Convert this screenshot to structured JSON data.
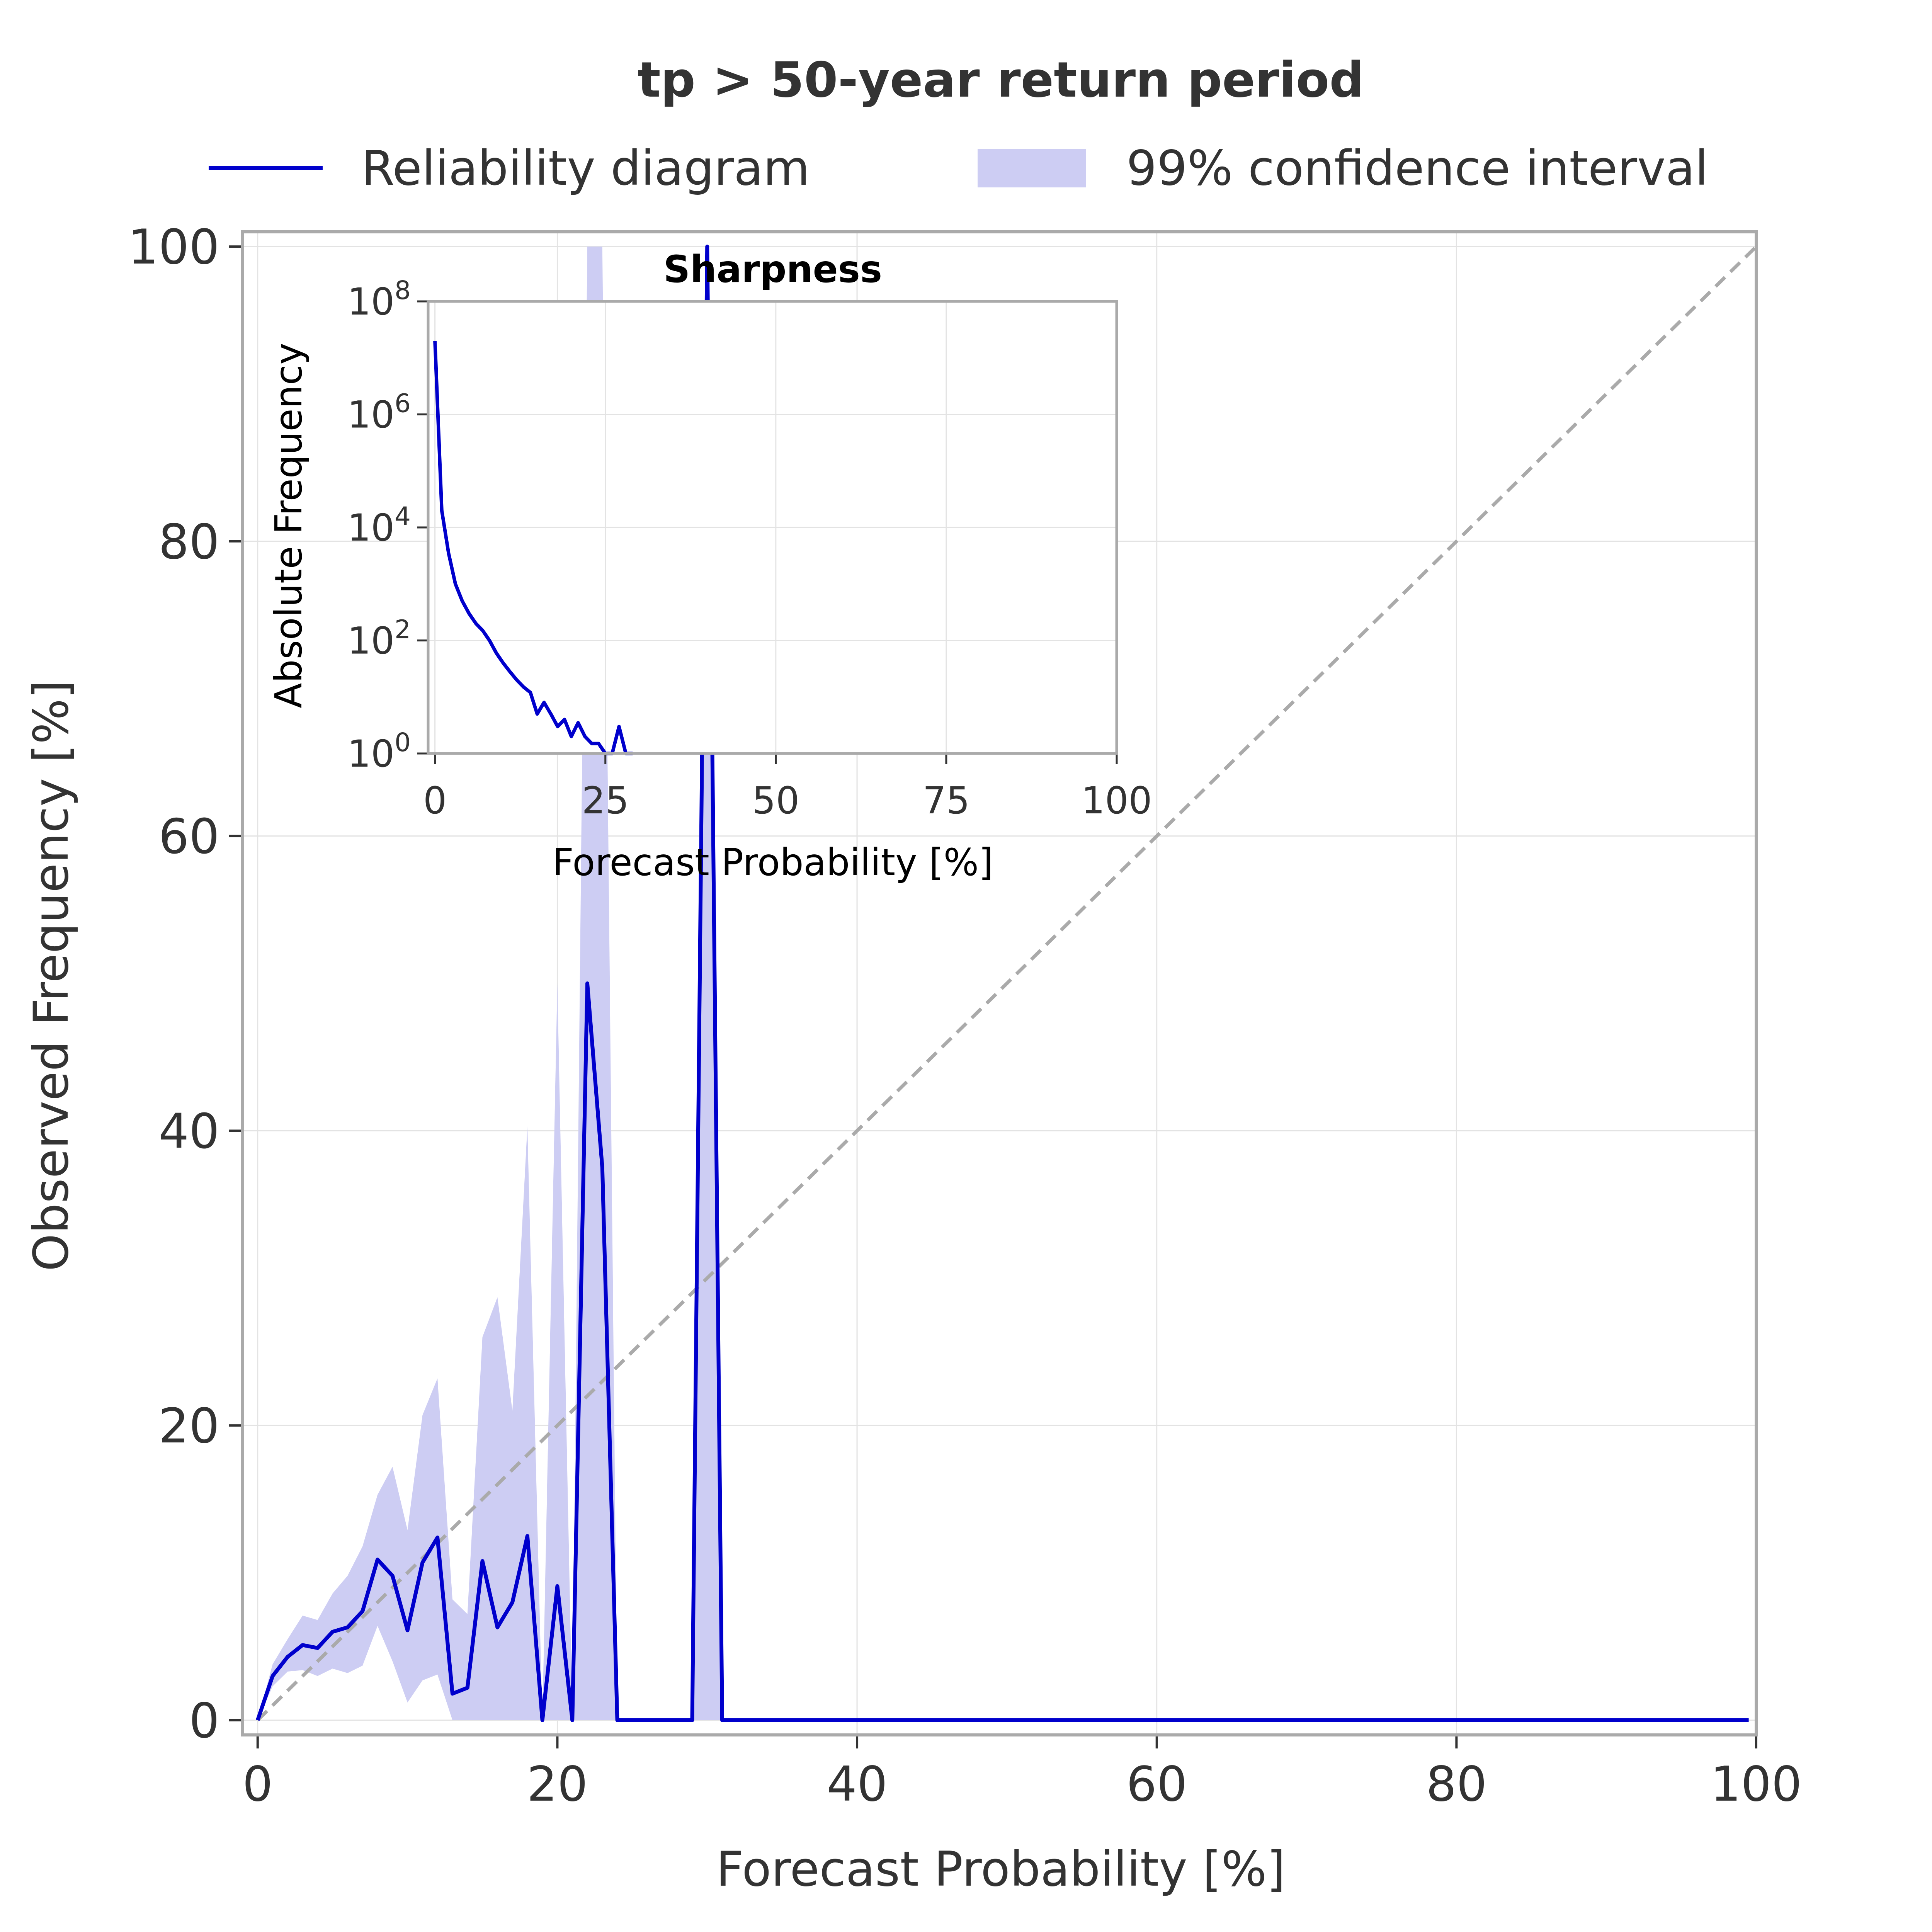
{
  "colors": {
    "line": "#0000cc",
    "ci_fill": "#cdcdf3",
    "diagonal": "#aaaaaa",
    "grid": "#e3e3e3",
    "frame": "#aaaaaa",
    "text": "#333333"
  },
  "legend": {
    "line_label": "Reliability diagram",
    "ci_label": "99% confidence interval",
    "placement": "top"
  },
  "chart_data": [
    {
      "type": "line",
      "title": "tp > 50-year return period",
      "xlabel": "Forecast Probability [%]",
      "ylabel": "Observed Frequency [%]",
      "xlim": [
        -1,
        100
      ],
      "ylim": [
        -1,
        101
      ],
      "xticks": [
        "0",
        "20",
        "40",
        "60",
        "80",
        "100"
      ],
      "yticks": [
        "0",
        "20",
        "40",
        "60",
        "80",
        "100"
      ],
      "grid": true,
      "diagonal_reference": true,
      "series": [
        {
          "name": "Reliability diagram",
          "x": [
            0,
            1,
            2,
            3,
            4,
            5,
            6,
            7,
            8,
            9,
            10,
            11,
            12,
            13,
            14,
            15,
            16,
            17,
            18,
            19,
            20,
            21,
            22,
            23,
            24,
            25,
            26,
            27,
            28,
            29,
            30,
            31,
            32,
            40,
            50,
            60,
            70,
            80,
            90,
            99.5
          ],
          "y": [
            0,
            3,
            4.3,
            5.1,
            4.9,
            6,
            6.3,
            7.4,
            10.9,
            9.8,
            6.1,
            10.7,
            12.4,
            1.8,
            2.2,
            10.8,
            6.3,
            8,
            12.5,
            0,
            9.1,
            0,
            50,
            37.5,
            0,
            0,
            0,
            0,
            0,
            0,
            100,
            0,
            0,
            0,
            0,
            0,
            0,
            0,
            0,
            0
          ]
        },
        {
          "name": "99% confidence interval",
          "x": [
            0,
            1,
            2,
            3,
            4,
            5,
            6,
            7,
            8,
            9,
            10,
            11,
            12,
            13,
            14,
            15,
            16,
            17,
            18,
            19,
            20,
            21,
            22,
            23,
            24,
            29,
            30,
            31
          ],
          "lower": [
            0,
            2.3,
            3.3,
            3.4,
            3,
            3.5,
            3.2,
            3.7,
            6.4,
            4,
            1.2,
            2.7,
            3.1,
            0,
            0,
            0,
            0,
            0,
            0,
            0,
            0,
            0,
            0,
            0,
            0,
            0,
            0,
            0
          ],
          "upper": [
            0,
            3.8,
            5.5,
            7.1,
            6.8,
            8.6,
            9.8,
            11.8,
            15.3,
            17.2,
            12.9,
            20.7,
            23.2,
            8.2,
            7.2,
            26,
            28.7,
            21,
            40.3,
            0,
            50,
            0,
            100,
            100,
            0,
            0,
            100,
            0
          ]
        }
      ]
    },
    {
      "type": "line",
      "title": "Sharpness",
      "xlabel": "Forecast Probability [%]",
      "ylabel": "Absolute Frequency",
      "xlim": [
        -1,
        100
      ],
      "ylim_log10": [
        0,
        8
      ],
      "log_y": true,
      "xticks": [
        "0",
        "25",
        "50",
        "75",
        "100"
      ],
      "yticks": [
        {
          "base": "10",
          "exp": "0"
        },
        {
          "base": "10",
          "exp": "2"
        },
        {
          "base": "10",
          "exp": "4"
        },
        {
          "base": "10",
          "exp": "6"
        },
        {
          "base": "10",
          "exp": "8"
        }
      ],
      "grid": true,
      "series": [
        {
          "x": [
            0,
            1,
            2,
            3,
            4,
            5,
            6,
            7,
            8,
            9,
            10,
            11,
            12,
            13,
            14,
            15,
            16,
            17,
            18,
            19,
            20,
            21,
            22,
            23,
            24,
            25,
            26,
            27,
            28,
            29
          ],
          "y": [
            20000000,
            20000,
            3500,
            1000,
            500,
            300,
            200,
            150,
            100,
            60,
            40,
            28,
            20,
            15,
            12,
            5,
            8,
            5,
            3,
            4,
            2,
            3.5,
            2,
            1.5,
            1.5,
            1,
            1,
            3,
            1,
            1
          ]
        }
      ]
    }
  ]
}
